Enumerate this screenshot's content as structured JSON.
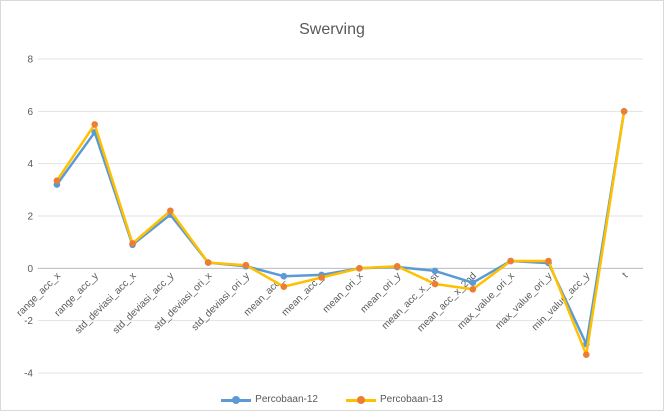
{
  "chart_data": {
    "type": "line",
    "title": "Swerving",
    "categories": [
      "range_acc_x",
      "range_acc_y",
      "std_deviasi_acc_x",
      "std_deviasi_acc_y",
      "std_deviasi_ori_x",
      "std_deviasi_ori_y",
      "mean_acc_x",
      "mean_acc_y",
      "mean_ori_x",
      "mean_ori_y",
      "mean_acc_x_1st",
      "mean_acc_x_2nd",
      "max_value_ori_x",
      "max_value_ori_y",
      "min_value_acc_y",
      "t"
    ],
    "series": [
      {
        "name": "Percobaan-12",
        "color": "#5b9bd5",
        "values": [
          3.2,
          5.2,
          0.9,
          2.05,
          0.22,
          0.08,
          -0.3,
          -0.25,
          0.0,
          0.05,
          -0.1,
          -0.55,
          0.28,
          0.2,
          -2.9,
          6.0
        ]
      },
      {
        "name": "Percobaan-13",
        "color": "#ffc000",
        "marker_color": "#ed7d31",
        "values": [
          3.35,
          5.5,
          0.95,
          2.2,
          0.22,
          0.12,
          -0.7,
          -0.35,
          0.0,
          0.08,
          -0.6,
          -0.8,
          0.28,
          0.28,
          -3.3,
          6.0
        ]
      }
    ],
    "ylim": [
      -4,
      8
    ],
    "yticks": [
      -4,
      -2,
      0,
      2,
      4,
      6,
      8
    ],
    "grid": true,
    "legend_position": "bottom"
  }
}
